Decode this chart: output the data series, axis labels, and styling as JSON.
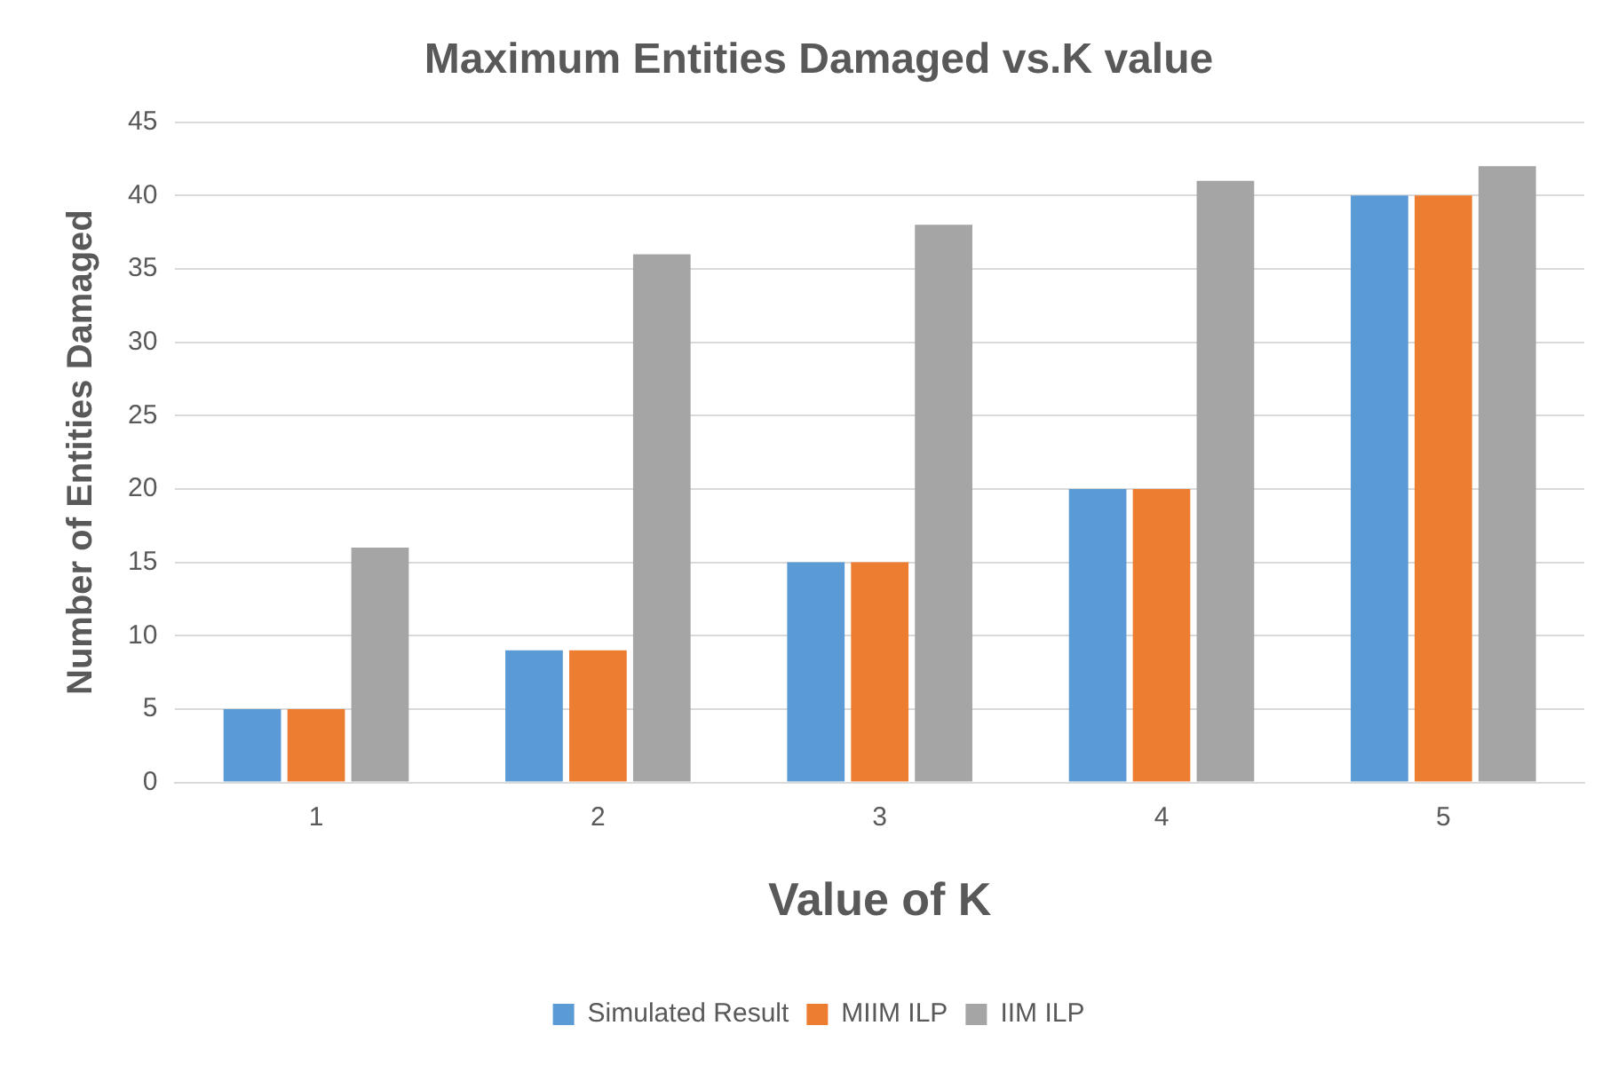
{
  "chart_data": {
    "type": "bar",
    "title": "Maximum Entities Damaged vs.K value",
    "xlabel": "Value of K",
    "ylabel": "Number of Entities Damaged",
    "categories": [
      "1",
      "2",
      "3",
      "4",
      "5"
    ],
    "series": [
      {
        "name": "Simulated Result",
        "color": "#5b9bd5",
        "values": [
          5,
          9,
          15,
          20,
          40
        ]
      },
      {
        "name": "MIIM ILP",
        "color": "#ed7d31",
        "values": [
          5,
          9,
          15,
          20,
          40
        ]
      },
      {
        "name": "IIM ILP",
        "color": "#a5a5a5",
        "values": [
          16,
          36,
          38,
          41,
          42
        ]
      }
    ],
    "ylim": [
      0,
      45
    ],
    "yticks": [
      0,
      5,
      10,
      15,
      20,
      25,
      30,
      35,
      40,
      45
    ],
    "grid": "y",
    "legend": "bottom"
  }
}
